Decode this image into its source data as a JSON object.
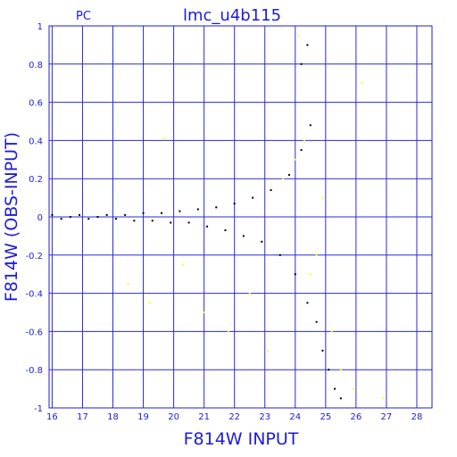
{
  "chart_data": {
    "type": "scatter",
    "title": "lmc_u4b115",
    "subtitle": "PC",
    "xlabel": "F814W  INPUT",
    "ylabel": "F814W  (OBS-INPUT)",
    "xlim": [
      15.9,
      28.5
    ],
    "ylim": [
      -1,
      1
    ],
    "grid": true,
    "x_ticks": [
      "16",
      "17",
      "18",
      "19",
      "20",
      "21",
      "22",
      "23",
      "24",
      "25",
      "26",
      "27",
      "28"
    ],
    "y_ticks": [
      "1",
      "0.8",
      "0.6",
      "0.4",
      "0.2",
      "0",
      "-0.2",
      "-0.4",
      "-0.6",
      "-0.8",
      "-1"
    ],
    "series": [
      {
        "color": "#000000",
        "points": [
          [
            16.0,
            0.01
          ],
          [
            16.3,
            -0.01
          ],
          [
            16.6,
            0.0
          ],
          [
            16.9,
            0.01
          ],
          [
            17.2,
            -0.01
          ],
          [
            17.5,
            0.0
          ],
          [
            17.8,
            0.01
          ],
          [
            18.1,
            -0.01
          ],
          [
            18.4,
            0.01
          ],
          [
            18.7,
            -0.02
          ],
          [
            19.0,
            0.02
          ],
          [
            19.3,
            -0.02
          ],
          [
            19.6,
            0.02
          ],
          [
            19.9,
            -0.03
          ],
          [
            20.2,
            0.03
          ],
          [
            20.5,
            -0.03
          ],
          [
            20.8,
            0.04
          ],
          [
            21.1,
            -0.05
          ],
          [
            21.4,
            0.05
          ],
          [
            21.7,
            -0.07
          ],
          [
            22.0,
            0.07
          ],
          [
            22.3,
            -0.1
          ],
          [
            22.6,
            0.1
          ],
          [
            22.9,
            -0.13
          ],
          [
            23.2,
            0.14
          ],
          [
            23.5,
            -0.2
          ],
          [
            23.8,
            0.22
          ],
          [
            24.0,
            -0.3
          ],
          [
            24.2,
            0.35
          ],
          [
            24.4,
            -0.45
          ],
          [
            24.5,
            0.48
          ],
          [
            24.7,
            -0.55
          ],
          [
            24.9,
            -0.7
          ],
          [
            25.1,
            -0.8
          ],
          [
            25.3,
            -0.9
          ],
          [
            25.5,
            -0.95
          ],
          [
            24.2,
            0.8
          ],
          [
            24.4,
            0.9
          ]
        ]
      },
      {
        "color": "#ffff00",
        "points": [
          [
            18.5,
            -0.35
          ],
          [
            19.2,
            -0.45
          ],
          [
            19.7,
            0.41
          ],
          [
            20.3,
            -0.25
          ],
          [
            21.0,
            -0.5
          ],
          [
            21.8,
            -0.6
          ],
          [
            22.5,
            -0.4
          ],
          [
            23.1,
            -0.7
          ],
          [
            23.6,
            0.2
          ],
          [
            24.0,
            0.3
          ],
          [
            24.3,
            0.4
          ],
          [
            24.5,
            -0.3
          ],
          [
            24.7,
            -0.2
          ],
          [
            24.9,
            0.1
          ],
          [
            25.2,
            -0.6
          ],
          [
            25.5,
            -0.8
          ],
          [
            24.1,
            0.95
          ],
          [
            26.2,
            0.7
          ],
          [
            26.9,
            -0.95
          ],
          [
            25.9,
            -0.9
          ]
        ]
      }
    ]
  }
}
